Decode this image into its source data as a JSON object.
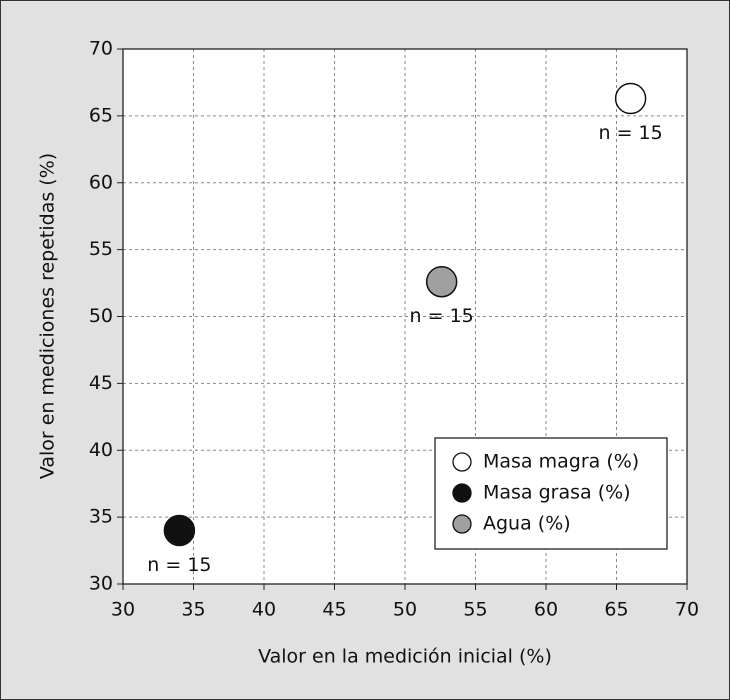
{
  "chart_data": {
    "type": "scatter",
    "xlabel": "Valor en la medición inicial (%)",
    "ylabel": "Valor en mediciones repetidas (%)",
    "xlim": [
      30,
      70
    ],
    "ylim": [
      30,
      70
    ],
    "xticks": [
      30,
      35,
      40,
      45,
      50,
      55,
      60,
      65,
      70
    ],
    "yticks": [
      30,
      35,
      40,
      45,
      50,
      55,
      60,
      65,
      70
    ],
    "grid": true,
    "legend": "lower right",
    "series": [
      {
        "name": "Masa magra (%)",
        "color": "#ffffff",
        "x": [
          66
        ],
        "y": [
          66.3
        ],
        "label": "n = 15"
      },
      {
        "name": "Masa grasa (%)",
        "color": "#111111",
        "x": [
          34
        ],
        "y": [
          34
        ],
        "label": "n = 15"
      },
      {
        "name": "Agua (%)",
        "color": "#a0a0a0",
        "x": [
          52.6
        ],
        "y": [
          52.6
        ],
        "label": "n = 15"
      }
    ]
  }
}
